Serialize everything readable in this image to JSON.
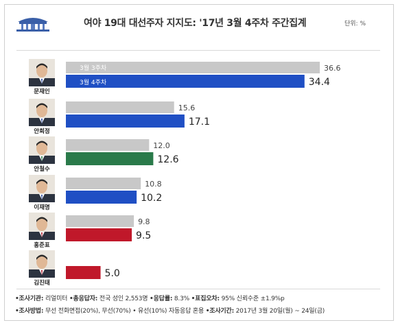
{
  "title": "여야 19대 대선주자 지지도: '17년 3월 4주차 주간집계",
  "unit_label": "단위: %",
  "legend": {
    "prev_label": "3월 3주차",
    "curr_label": "3월 4주차"
  },
  "colors": {
    "prev_bar": "#c8c8c8",
    "blue": "#1f4fc4",
    "green": "#2a7a4a",
    "red": "#c0182a"
  },
  "chart_data": {
    "type": "bar",
    "orientation": "horizontal",
    "categories": [
      "문재인",
      "안희정",
      "안철수",
      "이재명",
      "홍준표",
      "김진태"
    ],
    "series": [
      {
        "name": "3월 3주차",
        "values": [
          36.6,
          15.6,
          12.0,
          10.8,
          9.8,
          null
        ]
      },
      {
        "name": "3월 4주차",
        "values": [
          34.4,
          17.1,
          12.6,
          10.2,
          9.5,
          5.0
        ]
      }
    ],
    "value_labels_prev": [
      "36.6",
      "15.6",
      "12.0",
      "10.8",
      "9.8",
      ""
    ],
    "value_labels_curr": [
      "34.4",
      "17.1",
      "12.6",
      "10.2",
      "9.5",
      "5.0"
    ],
    "curr_bar_colors": [
      "blue",
      "blue",
      "green",
      "blue",
      "red",
      "red"
    ],
    "xlim": [
      0,
      40
    ]
  },
  "footer": {
    "line1": [
      {
        "key": "•조사기관:",
        "value": " 리얼미터  "
      },
      {
        "key": "•총응답자:",
        "value": " 전국 성인 2,553명  "
      },
      {
        "key": "•응답률:",
        "value": " 8.3%  "
      },
      {
        "key": "•표집오차:",
        "value": " 95% 신뢰수준 ±1.9%p"
      }
    ],
    "line2": [
      {
        "key": "•조사방법:",
        "value": " 무선 전화면접(20%), 무선(70%) • 유선(10%) 자동응답 혼용  "
      },
      {
        "key": "•조사기간:",
        "value": " 2017년 3월 20일(월) ~ 24일(금)"
      }
    ]
  }
}
